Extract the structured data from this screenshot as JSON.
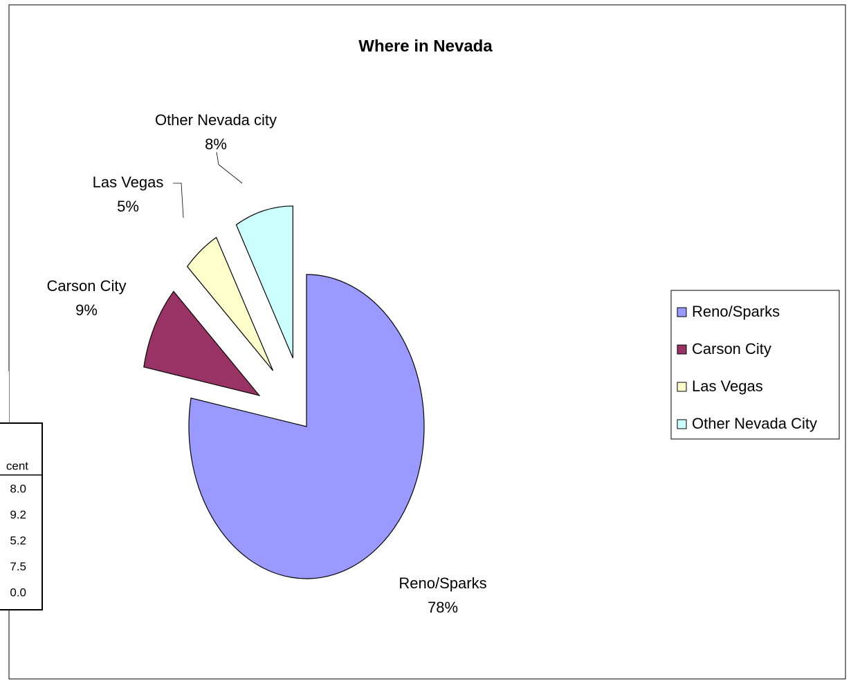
{
  "chart_data": {
    "type": "pie",
    "title": "Where in Nevada",
    "categories": [
      "Reno/Sparks",
      "Carson City",
      "Las Vegas",
      "Other Nevada City"
    ],
    "slice_labels": [
      "Reno/Sparks",
      "Carson City",
      "Las Vegas",
      "Other Nevada city"
    ],
    "values": [
      78,
      9,
      5,
      8
    ],
    "value_labels": [
      "78%",
      "9%",
      "5%",
      "8%"
    ],
    "colors": [
      "#9999ff",
      "#993366",
      "#ffffcc",
      "#ccffff"
    ],
    "legend": "right"
  },
  "table": {
    "header": "cent",
    "rows": [
      "8.0",
      "9.2",
      "5.2",
      "7.5",
      "0.0"
    ]
  }
}
